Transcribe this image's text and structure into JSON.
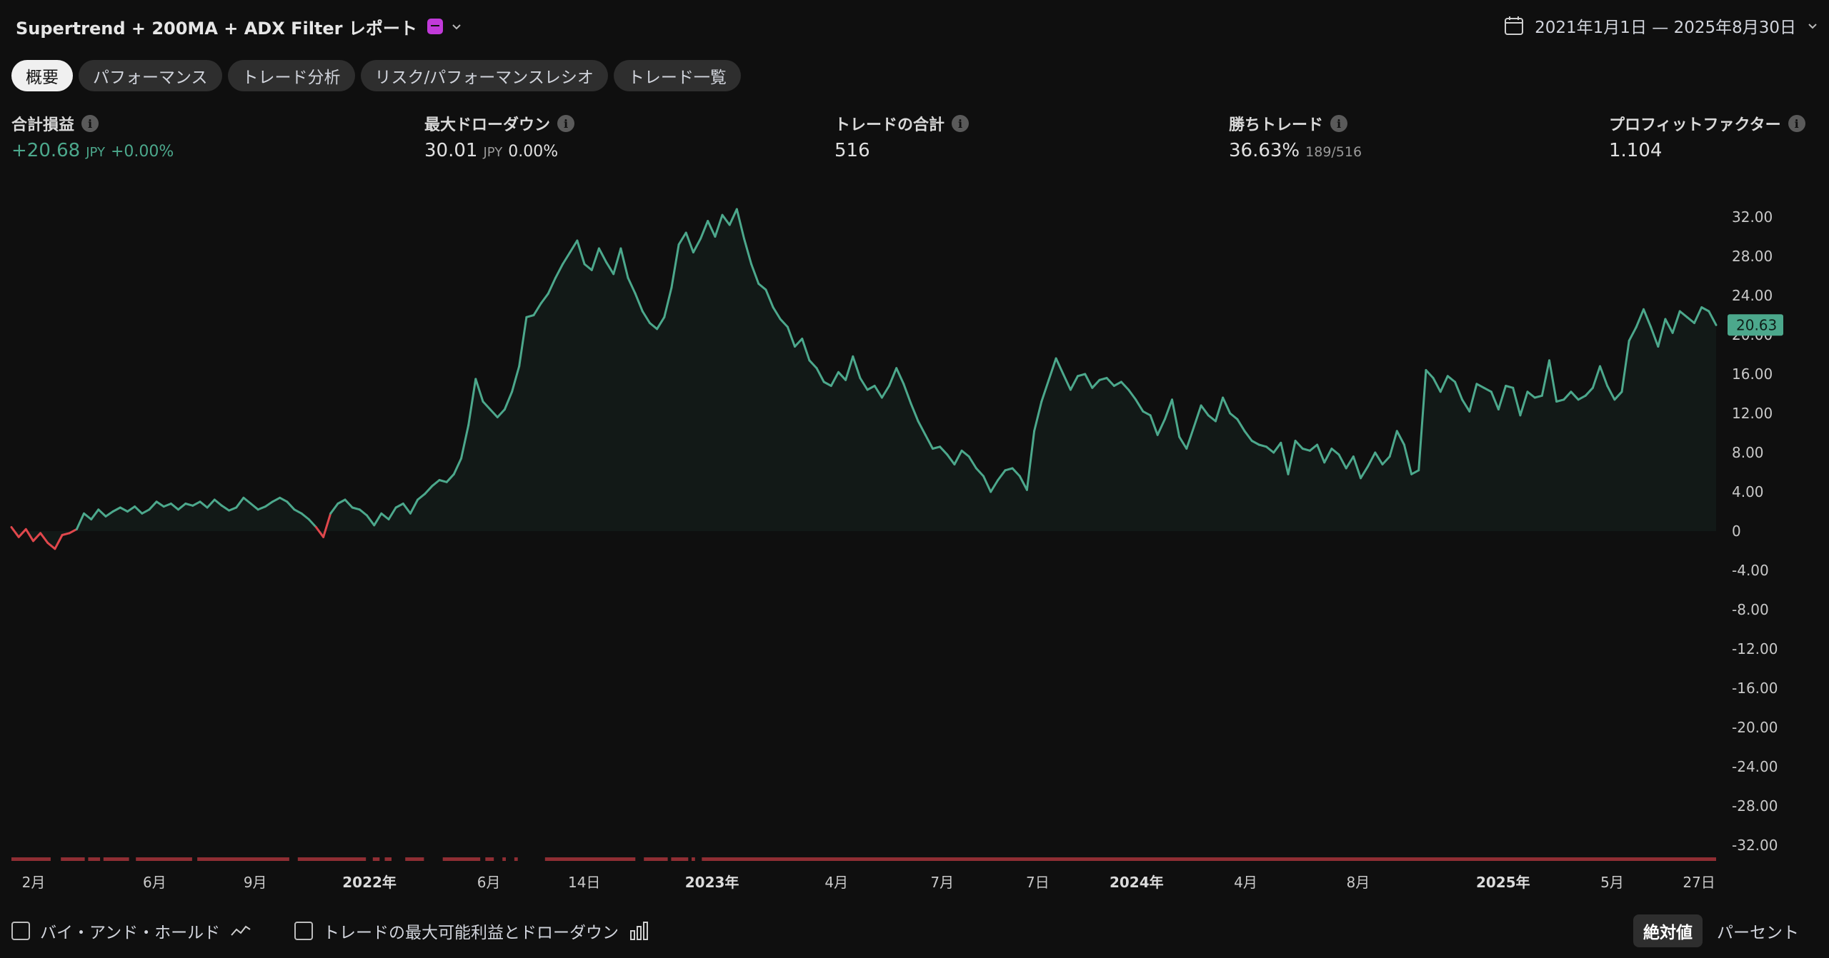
{
  "header": {
    "title": "Supertrend + 200MA + ADX Filter レポート",
    "date_range": "2021年1月1日 — 2025年8月30日"
  },
  "tabs": [
    {
      "label": "概要",
      "active": true
    },
    {
      "label": "パフォーマンス",
      "active": false
    },
    {
      "label": "トレード分析",
      "active": false
    },
    {
      "label": "リスク/パフォーマンスレシオ",
      "active": false
    },
    {
      "label": "トレード一覧",
      "active": false
    }
  ],
  "metrics": {
    "net_profit": {
      "label": "合計損益",
      "value": "+20.68",
      "unit": "JPY",
      "pct": "+0.00%"
    },
    "max_drawdown": {
      "label": "最大ドローダウン",
      "value": "30.01",
      "unit": "JPY",
      "pct": "0.00%"
    },
    "total_trades": {
      "label": "トレードの合計",
      "value": "516"
    },
    "win_trades": {
      "label": "勝ちトレード",
      "value": "36.63%",
      "sub": "189/516"
    },
    "profit_factor": {
      "label": "プロフィットファクター",
      "value": "1.104"
    }
  },
  "chart_data": {
    "type": "area",
    "title": "",
    "xlabel": "",
    "ylabel": "",
    "ylim": [
      -33,
      33
    ],
    "y_ticks": [
      "32.00",
      "28.00",
      "24.00",
      "20.00",
      "16.00",
      "12.00",
      "8.00",
      "4.00",
      "0",
      "-4.00",
      "-8.00",
      "-12.00",
      "-16.00",
      "-20.00",
      "-24.00",
      "-28.00",
      "-32.00"
    ],
    "y_tick_values": [
      32,
      28,
      24,
      20,
      16,
      12,
      8,
      4,
      0,
      -4,
      -8,
      -12,
      -16,
      -20,
      -24,
      -28,
      -32
    ],
    "x_ticks": [
      {
        "label": "2月",
        "pos": 0.013,
        "bold": false
      },
      {
        "label": "6月",
        "pos": 0.084,
        "bold": false
      },
      {
        "label": "9月",
        "pos": 0.143,
        "bold": false
      },
      {
        "label": "2022年",
        "pos": 0.21,
        "bold": true
      },
      {
        "label": "6月",
        "pos": 0.28,
        "bold": false
      },
      {
        "label": "14日",
        "pos": 0.336,
        "bold": false
      },
      {
        "label": "2023年",
        "pos": 0.411,
        "bold": true
      },
      {
        "label": "4月",
        "pos": 0.484,
        "bold": false
      },
      {
        "label": "7月",
        "pos": 0.546,
        "bold": false
      },
      {
        "label": "7日",
        "pos": 0.602,
        "bold": false
      },
      {
        "label": "2024年",
        "pos": 0.66,
        "bold": true
      },
      {
        "label": "4月",
        "pos": 0.724,
        "bold": false
      },
      {
        "label": "8月",
        "pos": 0.79,
        "bold": false
      },
      {
        "label": "2025年",
        "pos": 0.875,
        "bold": true
      },
      {
        "label": "5月",
        "pos": 0.939,
        "bold": false
      },
      {
        "label": "27日",
        "pos": 0.99,
        "bold": false
      }
    ],
    "last_value_label": "20.63",
    "series": [
      {
        "values": [
          0.4,
          -0.6,
          0.2,
          -1.0,
          -0.2,
          -1.2,
          -1.8,
          -0.4,
          -0.2,
          0.2,
          1.8,
          1.2,
          2.2,
          1.5,
          2.0,
          2.4,
          2.0,
          2.5,
          1.8,
          2.2,
          3.0,
          2.5,
          2.8,
          2.2,
          2.8,
          2.6,
          3.0,
          2.4,
          3.2,
          2.6,
          2.1,
          2.4,
          3.4,
          2.8,
          2.2,
          2.5,
          3.0,
          3.4,
          3.0,
          2.2,
          1.8,
          1.2,
          0.4,
          -0.6,
          1.8,
          2.8,
          3.2,
          2.4,
          2.2,
          1.6,
          0.6,
          1.8,
          1.2,
          2.4,
          2.8,
          1.8,
          3.2,
          3.8,
          4.6,
          5.2,
          5.0,
          5.8,
          7.4,
          10.8,
          15.5,
          13.2,
          12.4,
          11.6,
          12.4,
          14.2,
          16.8,
          21.8,
          22.0,
          23.2,
          24.2,
          25.8,
          27.2,
          28.4,
          29.6,
          27.2,
          26.6,
          28.8,
          27.4,
          26.2,
          28.8,
          25.8,
          24.2,
          22.4,
          21.2,
          20.6,
          21.8,
          24.8,
          29.2,
          30.4,
          28.4,
          29.8,
          31.6,
          30.0,
          32.2,
          31.2,
          32.8,
          29.8,
          27.2,
          25.2,
          24.6,
          22.8,
          21.6,
          20.8,
          18.8,
          19.6,
          17.4,
          16.6,
          15.2,
          14.8,
          16.2,
          15.4,
          17.8,
          15.6,
          14.4,
          14.8,
          13.6,
          14.8,
          16.6,
          15.0,
          13.0,
          11.2,
          9.8,
          8.4,
          8.6,
          7.8,
          6.8,
          8.2,
          7.6,
          6.4,
          5.6,
          4.0,
          5.2,
          6.2,
          6.4,
          5.6,
          4.2,
          10.2,
          13.2,
          15.4,
          17.6,
          16.0,
          14.4,
          15.8,
          16.0,
          14.6,
          15.4,
          15.6,
          14.8,
          15.2,
          14.4,
          13.4,
          12.2,
          11.8,
          9.8,
          11.4,
          13.4,
          9.6,
          8.4,
          10.6,
          12.8,
          11.8,
          11.2,
          13.6,
          12.0,
          11.4,
          10.2,
          9.2,
          8.8,
          8.6,
          8.0,
          9.0,
          5.8,
          9.2,
          8.4,
          8.2,
          8.8,
          7.0,
          8.4,
          7.8,
          6.4,
          7.6,
          5.4,
          6.6,
          8.0,
          6.8,
          7.6,
          10.2,
          8.8,
          5.8,
          6.2,
          16.4,
          15.6,
          14.2,
          15.8,
          15.2,
          13.4,
          12.2,
          15.0,
          14.6,
          14.2,
          12.4,
          14.8,
          14.6,
          11.8,
          14.2,
          13.6,
          13.8,
          17.4,
          13.2,
          13.4,
          14.2,
          13.4,
          13.8,
          14.6,
          16.8,
          14.8,
          13.4,
          14.2,
          19.4,
          20.8,
          22.6,
          20.8,
          18.8,
          21.6,
          20.2,
          22.4,
          21.8,
          21.2,
          22.8,
          22.4,
          21.0
        ]
      }
    ]
  },
  "footer": {
    "buy_hold_label": "バイ・アンド・ホールド",
    "max_profit_dd_label": "トレードの最大可能利益とドローダウン",
    "absolute_label": "絶対値",
    "percent_label": "パーセント"
  },
  "colors": {
    "accent_green": "#4ca88c",
    "negative_red": "#e0474c",
    "drawdown_bar": "#8f2e33",
    "background": "#0f0f0f"
  }
}
